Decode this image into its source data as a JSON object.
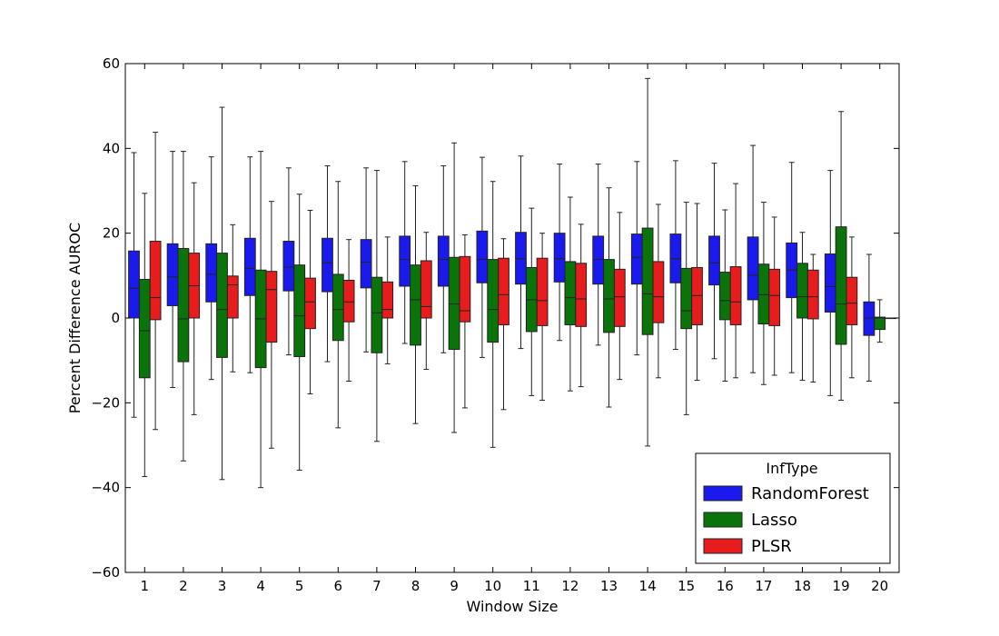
{
  "chart_data": {
    "type": "box",
    "xlabel": "Window Size",
    "ylabel": "Percent Difference AUROC",
    "ylim": [
      -60,
      60
    ],
    "yticks": [
      -60,
      -40,
      -20,
      0,
      20,
      40,
      60
    ],
    "ytick_labels": [
      "−60",
      "−40",
      "−20",
      "0",
      "20",
      "40",
      "60"
    ],
    "categories": [
      "1",
      "2",
      "3",
      "4",
      "5",
      "6",
      "7",
      "8",
      "9",
      "10",
      "11",
      "12",
      "13",
      "14",
      "15",
      "16",
      "17",
      "18",
      "19",
      "20"
    ],
    "legend": {
      "title": "InfType",
      "placement": "lower-right"
    },
    "series": [
      {
        "name": "RandomForest",
        "color": "#1a1aee",
        "boxes": [
          {
            "whislo": -23.4,
            "q1": 0.0,
            "med": 7.0,
            "q3": 15.8,
            "whishi": 39.0
          },
          {
            "whislo": -16.4,
            "q1": 2.9,
            "med": 9.7,
            "q3": 17.5,
            "whishi": 39.3
          },
          {
            "whislo": -14.5,
            "q1": 3.8,
            "med": 10.3,
            "q3": 17.5,
            "whishi": 38.0
          },
          {
            "whislo": -12.9,
            "q1": 5.3,
            "med": 11.7,
            "q3": 18.8,
            "whishi": 38.0
          },
          {
            "whislo": -8.7,
            "q1": 6.4,
            "med": 12.0,
            "q3": 18.1,
            "whishi": 35.4
          },
          {
            "whislo": -10.3,
            "q1": 6.2,
            "med": 13.0,
            "q3": 18.8,
            "whishi": 35.9
          },
          {
            "whislo": -8.0,
            "q1": 7.1,
            "med": 13.2,
            "q3": 18.5,
            "whishi": 35.4
          },
          {
            "whislo": -6.0,
            "q1": 7.5,
            "med": 13.8,
            "q3": 19.3,
            "whishi": 36.9
          },
          {
            "whislo": -8.2,
            "q1": 7.5,
            "med": 13.8,
            "q3": 19.3,
            "whishi": 35.9
          },
          {
            "whislo": -9.3,
            "q1": 8.3,
            "med": 13.8,
            "q3": 20.5,
            "whishi": 37.9
          },
          {
            "whislo": -7.2,
            "q1": 8.0,
            "med": 14.0,
            "q3": 20.2,
            "whishi": 38.2
          },
          {
            "whislo": -5.3,
            "q1": 8.5,
            "med": 14.0,
            "q3": 20.0,
            "whishi": 36.3
          },
          {
            "whislo": -6.4,
            "q1": 8.0,
            "med": 13.8,
            "q3": 19.3,
            "whishi": 36.3
          },
          {
            "whislo": -8.7,
            "q1": 8.0,
            "med": 14.3,
            "q3": 19.8,
            "whishi": 36.9
          },
          {
            "whislo": -7.4,
            "q1": 8.3,
            "med": 14.0,
            "q3": 19.8,
            "whishi": 37.1
          },
          {
            "whislo": -9.6,
            "q1": 7.8,
            "med": 13.0,
            "q3": 19.3,
            "whishi": 36.5
          },
          {
            "whislo": -12.9,
            "q1": 4.3,
            "med": 10.1,
            "q3": 19.1,
            "whishi": 40.7
          },
          {
            "whislo": -12.9,
            "q1": 4.8,
            "med": 11.3,
            "q3": 17.7,
            "whishi": 36.7
          },
          {
            "whislo": -18.3,
            "q1": 1.4,
            "med": 7.4,
            "q3": 15.1,
            "whishi": 34.8
          },
          {
            "whislo": -14.9,
            "q1": -4.1,
            "med": 0.0,
            "q3": 3.8,
            "whishi": 15.0
          }
        ]
      },
      {
        "name": "Lasso",
        "color": "#0a740a",
        "boxes": [
          {
            "whislo": -37.4,
            "q1": -14.1,
            "med": -3.0,
            "q3": 9.1,
            "whishi": 29.4
          },
          {
            "whislo": -33.7,
            "q1": -10.3,
            "med": -0.2,
            "q3": 16.4,
            "whishi": 39.3
          },
          {
            "whislo": -38.1,
            "q1": -9.3,
            "med": 2.0,
            "q3": 15.3,
            "whishi": 49.7
          },
          {
            "whislo": -40.0,
            "q1": -11.7,
            "med": -0.2,
            "q3": 11.3,
            "whishi": 39.3
          },
          {
            "whislo": -35.9,
            "q1": -9.1,
            "med": 0.5,
            "q3": 12.5,
            "whishi": 29.2
          },
          {
            "whislo": -25.9,
            "q1": -5.3,
            "med": 2.0,
            "q3": 10.3,
            "whishi": 32.2
          },
          {
            "whislo": -29.1,
            "q1": -8.2,
            "med": 1.2,
            "q3": 9.6,
            "whishi": 34.8
          },
          {
            "whislo": -24.9,
            "q1": -6.4,
            "med": 4.3,
            "q3": 12.5,
            "whishi": 31.2
          },
          {
            "whislo": -27.0,
            "q1": -7.4,
            "med": 3.3,
            "q3": 14.3,
            "whishi": 41.3
          },
          {
            "whislo": -30.5,
            "q1": -5.7,
            "med": 2.0,
            "q3": 13.8,
            "whishi": 32.2
          },
          {
            "whislo": -18.3,
            "q1": -3.2,
            "med": 4.3,
            "q3": 11.9,
            "whishi": 25.9
          },
          {
            "whislo": -17.2,
            "q1": -1.6,
            "med": 4.8,
            "q3": 13.3,
            "whishi": 28.5
          },
          {
            "whislo": -21.0,
            "q1": -3.4,
            "med": 4.5,
            "q3": 13.8,
            "whishi": 30.7
          },
          {
            "whislo": -30.2,
            "q1": -3.9,
            "med": 5.7,
            "q3": 21.2,
            "whishi": 56.5
          },
          {
            "whislo": -22.8,
            "q1": -2.5,
            "med": 1.7,
            "q3": 11.7,
            "whishi": 27.3
          },
          {
            "whislo": -14.9,
            "q1": -0.4,
            "med": 4.1,
            "q3": 10.8,
            "whishi": 25.5
          },
          {
            "whislo": -15.7,
            "q1": -1.4,
            "med": 5.5,
            "q3": 12.7,
            "whishi": 27.3
          },
          {
            "whislo": -14.7,
            "q1": 0.0,
            "med": 5.0,
            "q3": 12.9,
            "whishi": 20.2
          },
          {
            "whislo": -19.4,
            "q1": -6.2,
            "med": 3.3,
            "q3": 21.5,
            "whishi": 48.7
          },
          {
            "whislo": -5.7,
            "q1": -2.7,
            "med": 0.0,
            "q3": 0.2,
            "whishi": 4.3
          }
        ]
      },
      {
        "name": "PLSR",
        "color": "#e81c1c",
        "boxes": [
          {
            "whislo": -26.3,
            "q1": -0.4,
            "med": 4.8,
            "q3": 18.1,
            "whishi": 43.8
          },
          {
            "whislo": -22.8,
            "q1": 0.0,
            "med": 7.6,
            "q3": 15.3,
            "whishi": 31.9
          },
          {
            "whislo": -12.7,
            "q1": 0.0,
            "med": 7.8,
            "q3": 9.9,
            "whishi": 22.0
          },
          {
            "whislo": -30.7,
            "q1": -5.7,
            "med": 6.7,
            "q3": 11.0,
            "whishi": 27.5
          },
          {
            "whislo": -17.9,
            "q1": -2.5,
            "med": 3.8,
            "q3": 9.4,
            "whishi": 25.4
          },
          {
            "whislo": -14.9,
            "q1": -0.9,
            "med": 3.8,
            "q3": 8.9,
            "whishi": 18.5
          },
          {
            "whislo": -10.8,
            "q1": 0.0,
            "med": 2.0,
            "q3": 8.5,
            "whishi": 19.1
          },
          {
            "whislo": -12.1,
            "q1": 0.0,
            "med": 2.7,
            "q3": 13.5,
            "whishi": 20.2
          },
          {
            "whislo": -21.2,
            "q1": -0.9,
            "med": 1.7,
            "q3": 14.5,
            "whishi": 19.6
          },
          {
            "whislo": -21.6,
            "q1": -1.6,
            "med": 5.5,
            "q3": 14.1,
            "whishi": 18.7
          },
          {
            "whislo": -19.4,
            "q1": -1.8,
            "med": 4.1,
            "q3": 14.1,
            "whishi": 20.0
          },
          {
            "whislo": -16.2,
            "q1": -2.0,
            "med": 4.5,
            "q3": 12.9,
            "whishi": 22.1
          },
          {
            "whislo": -14.5,
            "q1": -2.0,
            "med": 5.0,
            "q3": 11.5,
            "whishi": 24.9
          },
          {
            "whislo": -14.1,
            "q1": -1.1,
            "med": 5.0,
            "q3": 13.3,
            "whishi": 26.8
          },
          {
            "whislo": -14.7,
            "q1": -1.6,
            "med": 5.3,
            "q3": 11.9,
            "whishi": 27.0
          },
          {
            "whislo": -14.1,
            "q1": -1.6,
            "med": 3.8,
            "q3": 12.1,
            "whishi": 31.7
          },
          {
            "whislo": -13.5,
            "q1": -1.8,
            "med": 5.3,
            "q3": 11.5,
            "whishi": 23.8
          },
          {
            "whislo": -15.1,
            "q1": -0.2,
            "med": 5.0,
            "q3": 11.3,
            "whishi": 15.0
          },
          {
            "whislo": -14.1,
            "q1": -1.6,
            "med": 3.5,
            "q3": 9.6,
            "whishi": 19.1
          },
          {
            "whislo": 0.0,
            "q1": 0.0,
            "med": 0.0,
            "q3": 0.0,
            "whishi": 0.0
          }
        ]
      }
    ]
  }
}
